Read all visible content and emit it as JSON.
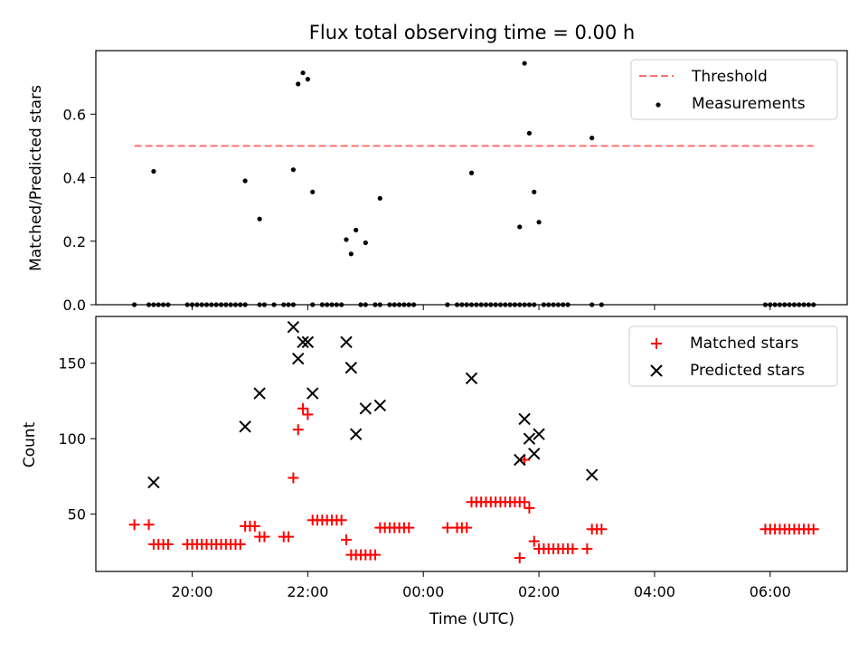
{
  "chart_data": [
    {
      "type": "scatter",
      "title": "Flux total observing time = 0.00 h",
      "xlabel": "",
      "ylabel": "Matched/Predicted stars",
      "ylim": [
        0,
        0.8
      ],
      "y_ticks": [
        "0.0",
        "0.2",
        "0.4",
        "0.6"
      ],
      "legend": {
        "position": "top-right",
        "entries": [
          "Threshold",
          "Measurements"
        ]
      },
      "threshold": {
        "name": "Threshold",
        "value": 0.5,
        "x_start": "19:00",
        "x_end": "06:45",
        "color": "#ff7070",
        "style": "dashed"
      },
      "series": [
        {
          "name": "Measurements",
          "marker": "dot",
          "color": "#000000",
          "points": [
            [
              "19:00",
              0
            ],
            [
              "19:15",
              0
            ],
            [
              "19:20",
              0
            ],
            [
              "19:25",
              0
            ],
            [
              "19:30",
              0
            ],
            [
              "19:35",
              0
            ],
            [
              "19:20",
              0.42
            ],
            [
              "19:55",
              0
            ],
            [
              "20:00",
              0
            ],
            [
              "20:05",
              0
            ],
            [
              "20:10",
              0
            ],
            [
              "20:15",
              0
            ],
            [
              "20:20",
              0
            ],
            [
              "20:25",
              0
            ],
            [
              "20:30",
              0
            ],
            [
              "20:35",
              0
            ],
            [
              "20:40",
              0
            ],
            [
              "20:45",
              0
            ],
            [
              "20:50",
              0
            ],
            [
              "20:55",
              0
            ],
            [
              "21:10",
              0
            ],
            [
              "21:15",
              0
            ],
            [
              "21:25",
              0
            ],
            [
              "20:55",
              0.39
            ],
            [
              "21:10",
              0.27
            ],
            [
              "21:35",
              0
            ],
            [
              "21:40",
              0
            ],
            [
              "21:45",
              0
            ],
            [
              "21:45",
              0.425
            ],
            [
              "21:50",
              0.695
            ],
            [
              "21:55",
              0.73
            ],
            [
              "22:00",
              0.71
            ],
            [
              "22:05",
              0.355
            ],
            [
              "22:05",
              0
            ],
            [
              "22:15",
              0
            ],
            [
              "22:20",
              0
            ],
            [
              "22:25",
              0
            ],
            [
              "22:30",
              0
            ],
            [
              "22:35",
              0
            ],
            [
              "22:40",
              0.205
            ],
            [
              "22:45",
              0.16
            ],
            [
              "22:50",
              0.235
            ],
            [
              "23:00",
              0.195
            ],
            [
              "23:15",
              0.335
            ],
            [
              "22:55",
              0
            ],
            [
              "23:00",
              0
            ],
            [
              "23:10",
              0
            ],
            [
              "23:15",
              0
            ],
            [
              "23:25",
              0
            ],
            [
              "23:30",
              0
            ],
            [
              "23:35",
              0
            ],
            [
              "23:40",
              0
            ],
            [
              "23:45",
              0
            ],
            [
              "23:50",
              0
            ],
            [
              "00:25",
              0
            ],
            [
              "00:35",
              0
            ],
            [
              "00:40",
              0
            ],
            [
              "00:45",
              0
            ],
            [
              "00:50",
              0
            ],
            [
              "00:55",
              0
            ],
            [
              "01:00",
              0
            ],
            [
              "01:05",
              0
            ],
            [
              "01:10",
              0
            ],
            [
              "01:15",
              0
            ],
            [
              "01:20",
              0
            ],
            [
              "01:25",
              0
            ],
            [
              "01:30",
              0
            ],
            [
              "01:35",
              0
            ],
            [
              "01:40",
              0
            ],
            [
              "01:45",
              0
            ],
            [
              "01:50",
              0
            ],
            [
              "01:55",
              0
            ],
            [
              "00:50",
              0.415
            ],
            [
              "01:40",
              0.245
            ],
            [
              "01:45",
              0.76
            ],
            [
              "01:50",
              0.54
            ],
            [
              "01:55",
              0.355
            ],
            [
              "02:00",
              0.26
            ],
            [
              "02:05",
              0
            ],
            [
              "02:10",
              0
            ],
            [
              "02:15",
              0
            ],
            [
              "02:20",
              0
            ],
            [
              "02:25",
              0
            ],
            [
              "02:30",
              0
            ],
            [
              "02:55",
              0
            ],
            [
              "03:05",
              0
            ],
            [
              "02:55",
              0.525
            ],
            [
              "05:55",
              0
            ],
            [
              "06:00",
              0
            ],
            [
              "06:05",
              0
            ],
            [
              "06:10",
              0
            ],
            [
              "06:15",
              0
            ],
            [
              "06:20",
              0
            ],
            [
              "06:25",
              0
            ],
            [
              "06:30",
              0
            ],
            [
              "06:35",
              0
            ],
            [
              "06:40",
              0
            ],
            [
              "06:45",
              0
            ]
          ]
        }
      ]
    },
    {
      "type": "scatter",
      "title": "",
      "xlabel": "Time (UTC)",
      "ylabel": "Count",
      "ylim": [
        12,
        181
      ],
      "y_ticks": [
        "50",
        "100",
        "150"
      ],
      "x_ticks": [
        "20:00",
        "22:00",
        "00:00",
        "02:00",
        "04:00",
        "06:00"
      ],
      "legend": {
        "position": "top-right",
        "entries": [
          "Matched stars",
          "Predicted stars"
        ]
      },
      "series": [
        {
          "name": "Matched stars",
          "marker": "plus",
          "color": "#ff0000",
          "points": [
            [
              "19:00",
              43
            ],
            [
              "19:15",
              43
            ],
            [
              "19:20",
              30
            ],
            [
              "19:25",
              30
            ],
            [
              "19:30",
              30
            ],
            [
              "19:35",
              30
            ],
            [
              "19:55",
              30
            ],
            [
              "20:00",
              30
            ],
            [
              "20:05",
              30
            ],
            [
              "20:10",
              30
            ],
            [
              "20:15",
              30
            ],
            [
              "20:20",
              30
            ],
            [
              "20:25",
              30
            ],
            [
              "20:30",
              30
            ],
            [
              "20:35",
              30
            ],
            [
              "20:40",
              30
            ],
            [
              "20:45",
              30
            ],
            [
              "20:50",
              30
            ],
            [
              "20:55",
              42
            ],
            [
              "21:00",
              42
            ],
            [
              "21:05",
              42
            ],
            [
              "21:10",
              35
            ],
            [
              "21:15",
              35
            ],
            [
              "21:35",
              35
            ],
            [
              "21:40",
              35
            ],
            [
              "21:45",
              74
            ],
            [
              "21:50",
              106
            ],
            [
              "21:55",
              120
            ],
            [
              "22:00",
              116
            ],
            [
              "22:05",
              46
            ],
            [
              "22:10",
              46
            ],
            [
              "22:15",
              46
            ],
            [
              "22:20",
              46
            ],
            [
              "22:25",
              46
            ],
            [
              "22:30",
              46
            ],
            [
              "22:35",
              46
            ],
            [
              "22:40",
              33
            ],
            [
              "22:45",
              23
            ],
            [
              "22:50",
              23
            ],
            [
              "22:55",
              23
            ],
            [
              "23:00",
              23
            ],
            [
              "23:05",
              23
            ],
            [
              "23:10",
              23
            ],
            [
              "23:15",
              41
            ],
            [
              "23:20",
              41
            ],
            [
              "23:25",
              41
            ],
            [
              "23:30",
              41
            ],
            [
              "23:35",
              41
            ],
            [
              "23:40",
              41
            ],
            [
              "23:45",
              41
            ],
            [
              "00:25",
              41
            ],
            [
              "00:35",
              41
            ],
            [
              "00:40",
              41
            ],
            [
              "00:45",
              41
            ],
            [
              "00:50",
              58
            ],
            [
              "00:55",
              58
            ],
            [
              "01:00",
              58
            ],
            [
              "01:05",
              58
            ],
            [
              "01:10",
              58
            ],
            [
              "01:15",
              58
            ],
            [
              "01:20",
              58
            ],
            [
              "01:25",
              58
            ],
            [
              "01:30",
              58
            ],
            [
              "01:35",
              58
            ],
            [
              "01:40",
              58
            ],
            [
              "01:45",
              58
            ],
            [
              "01:40",
              21
            ],
            [
              "01:45",
              86
            ],
            [
              "01:50",
              54
            ],
            [
              "01:55",
              32
            ],
            [
              "02:00",
              27
            ],
            [
              "02:05",
              27
            ],
            [
              "02:10",
              27
            ],
            [
              "02:15",
              27
            ],
            [
              "02:20",
              27
            ],
            [
              "02:25",
              27
            ],
            [
              "02:30",
              27
            ],
            [
              "02:35",
              27
            ],
            [
              "02:50",
              27
            ],
            [
              "02:55",
              40
            ],
            [
              "03:00",
              40
            ],
            [
              "03:05",
              40
            ],
            [
              "05:55",
              40
            ],
            [
              "06:00",
              40
            ],
            [
              "06:05",
              40
            ],
            [
              "06:10",
              40
            ],
            [
              "06:15",
              40
            ],
            [
              "06:20",
              40
            ],
            [
              "06:25",
              40
            ],
            [
              "06:30",
              40
            ],
            [
              "06:35",
              40
            ],
            [
              "06:40",
              40
            ],
            [
              "06:45",
              40
            ]
          ]
        },
        {
          "name": "Predicted stars",
          "marker": "x",
          "color": "#000000",
          "points": [
            [
              "19:20",
              71
            ],
            [
              "20:55",
              108
            ],
            [
              "21:10",
              130
            ],
            [
              "21:45",
              174
            ],
            [
              "21:50",
              153
            ],
            [
              "21:55",
              164
            ],
            [
              "22:00",
              164
            ],
            [
              "22:05",
              130
            ],
            [
              "22:40",
              164
            ],
            [
              "22:45",
              147
            ],
            [
              "22:50",
              103
            ],
            [
              "23:00",
              120
            ],
            [
              "23:15",
              122
            ],
            [
              "00:50",
              140
            ],
            [
              "01:40",
              86
            ],
            [
              "01:45",
              113
            ],
            [
              "01:50",
              100
            ],
            [
              "01:55",
              90
            ],
            [
              "02:00",
              103
            ],
            [
              "02:55",
              76
            ]
          ]
        }
      ]
    }
  ]
}
